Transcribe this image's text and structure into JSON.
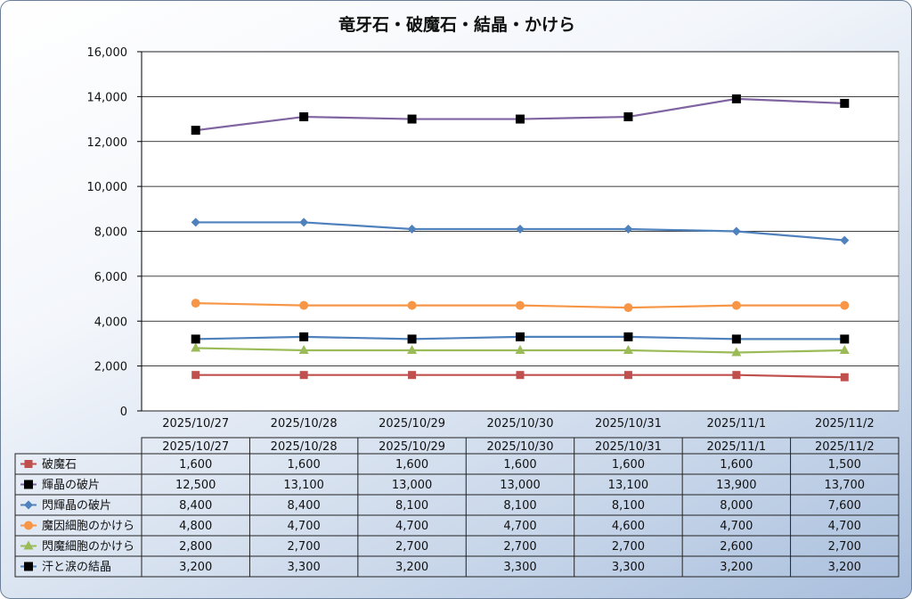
{
  "chart_data": {
    "type": "line",
    "title": "竜牙石・破魔石・結晶・かけら",
    "categories": [
      "2025/10/27",
      "2025/10/28",
      "2025/10/29",
      "2025/10/30",
      "2025/10/31",
      "2025/11/1",
      "2025/11/2"
    ],
    "ylim": [
      0,
      16000
    ],
    "yticks": [
      "0",
      "2,000",
      "4,000",
      "6,000",
      "8,000",
      "10,000",
      "12,000",
      "14,000",
      "16,000"
    ],
    "grid": true,
    "legend": "data-table",
    "series": [
      {
        "name": "破魔石",
        "color": "#c0504d",
        "marker": "square",
        "values": [
          1600,
          1600,
          1600,
          1600,
          1600,
          1600,
          1500
        ],
        "labels": [
          "1,600",
          "1,600",
          "1,600",
          "1,600",
          "1,600",
          "1,600",
          "1,500"
        ]
      },
      {
        "name": "輝晶の破片",
        "color": "#8064a2",
        "marker": "black-square",
        "values": [
          12500,
          13100,
          13000,
          13000,
          13100,
          13900,
          13700
        ],
        "labels": [
          "12,500",
          "13,100",
          "13,000",
          "13,000",
          "13,100",
          "13,900",
          "13,700"
        ]
      },
      {
        "name": "閃輝晶の破片",
        "color": "#4f81bd",
        "marker": "diamond",
        "values": [
          8400,
          8400,
          8100,
          8100,
          8100,
          8000,
          7600
        ],
        "labels": [
          "8,400",
          "8,400",
          "8,100",
          "8,100",
          "8,100",
          "8,000",
          "7,600"
        ]
      },
      {
        "name": "魔因細胞のかけら",
        "color": "#f79646",
        "marker": "circle",
        "values": [
          4800,
          4700,
          4700,
          4700,
          4600,
          4700,
          4700
        ],
        "labels": [
          "4,800",
          "4,700",
          "4,700",
          "4,700",
          "4,600",
          "4,700",
          "4,700"
        ]
      },
      {
        "name": "閃魔細胞のかけら",
        "color": "#9bbb59",
        "marker": "triangle",
        "values": [
          2800,
          2700,
          2700,
          2700,
          2700,
          2600,
          2700
        ],
        "labels": [
          "2,800",
          "2,700",
          "2,700",
          "2,700",
          "2,700",
          "2,600",
          "2,700"
        ]
      },
      {
        "name": "汗と涙の結晶",
        "color": "#4f81bd",
        "marker": "black-square",
        "values": [
          3200,
          3300,
          3200,
          3300,
          3300,
          3200,
          3200
        ],
        "labels": [
          "3,200",
          "3,300",
          "3,200",
          "3,300",
          "3,300",
          "3,200",
          "3,200"
        ]
      }
    ]
  }
}
